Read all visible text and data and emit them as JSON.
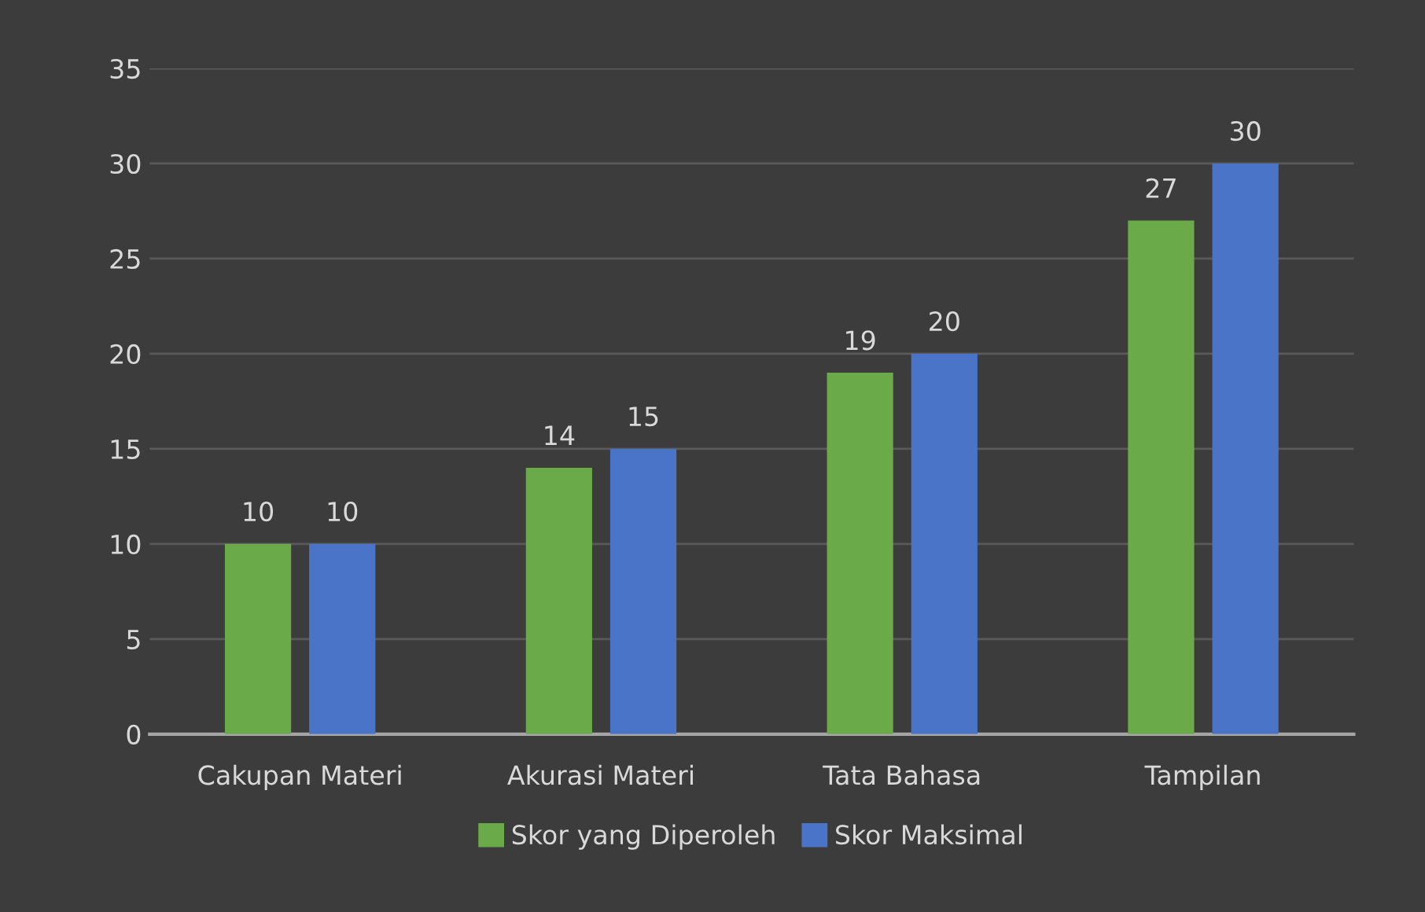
{
  "chart_data": {
    "type": "bar",
    "categories": [
      "Cakupan Materi",
      "Akurasi Materi",
      "Tata Bahasa",
      "Tampilan"
    ],
    "series": [
      {
        "name": "Skor yang Diperoleh",
        "color": "#6aaa48",
        "values": [
          10,
          14,
          19,
          27
        ]
      },
      {
        "name": "Skor Maksimal",
        "color": "#4a74c8",
        "values": [
          10,
          15,
          20,
          30
        ]
      }
    ],
    "ylim": [
      0,
      35
    ],
    "yticks": [
      0,
      5,
      10,
      15,
      20,
      25,
      30,
      35
    ],
    "grid": "y",
    "legend": "bottom",
    "data_labels": true
  }
}
